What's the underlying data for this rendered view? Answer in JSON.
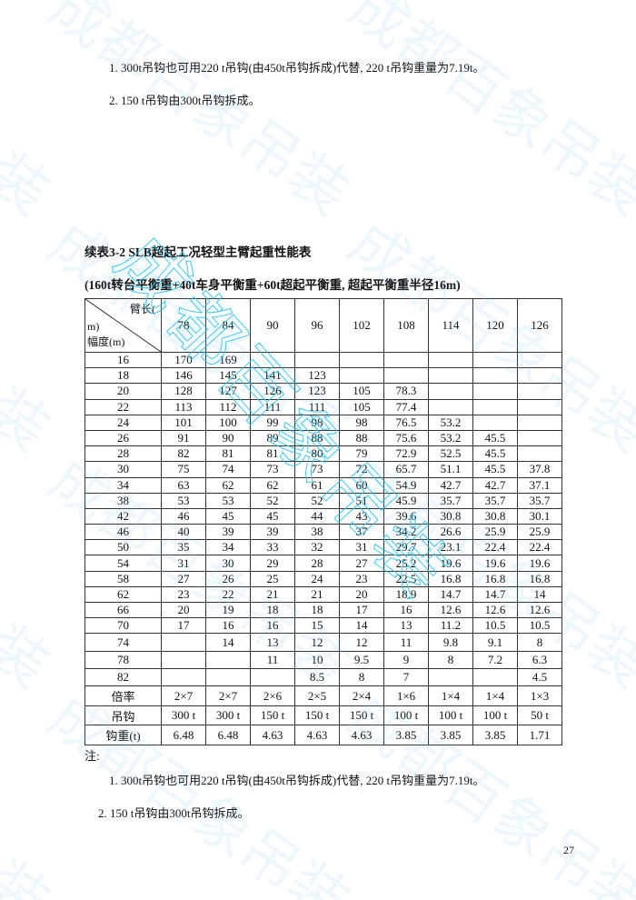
{
  "top_notes": [
    "1. 300t吊钩也可用220 t吊钩(由450t吊钩拆成)代替, 220 t吊钩重量为7.19t。",
    "2. 150 t吊钩由300t吊钩拆成。"
  ],
  "table_title": "续表3-2 SLB超起工况轻型主臂起重性能表",
  "table_subtitle": "(160t转台平衡重+40t车身平衡重+60t超起平衡重, 超起平衡重半径16m)",
  "table": {
    "corner_top": "臂长(",
    "corner_mid": "m)",
    "corner_bottom": "幅度(m)",
    "boom_lengths": [
      "78",
      "84",
      "90",
      "96",
      "102",
      "108",
      "114",
      "120",
      "126"
    ],
    "rows": [
      {
        "radius": "16",
        "values": [
          "170",
          "169",
          "",
          "",
          "",
          "",
          "",
          "",
          ""
        ]
      },
      {
        "radius": "18",
        "values": [
          "146",
          "145",
          "141",
          "123",
          "",
          "",
          "",
          "",
          ""
        ]
      },
      {
        "radius": "20",
        "values": [
          "128",
          "127",
          "126",
          "123",
          "105",
          "78.3",
          "",
          "",
          ""
        ]
      },
      {
        "radius": "22",
        "values": [
          "113",
          "112",
          "111",
          "111",
          "105",
          "77.4",
          "",
          "",
          ""
        ]
      },
      {
        "radius": "24",
        "values": [
          "101",
          "100",
          "99",
          "98",
          "98",
          "76.5",
          "53.2",
          "",
          ""
        ]
      },
      {
        "radius": "26",
        "values": [
          "91",
          "90",
          "89",
          "88",
          "88",
          "75.6",
          "53.2",
          "45.5",
          ""
        ]
      },
      {
        "radius": "28",
        "values": [
          "82",
          "81",
          "81",
          "80",
          "79",
          "72.9",
          "52.5",
          "45.5",
          ""
        ]
      },
      {
        "radius": "30",
        "values": [
          "75",
          "74",
          "73",
          "73",
          "72",
          "65.7",
          "51.1",
          "45.5",
          "37.8"
        ]
      },
      {
        "radius": "34",
        "values": [
          "63",
          "62",
          "62",
          "61",
          "60",
          "54.9",
          "42.7",
          "42.7",
          "37.1"
        ]
      },
      {
        "radius": "38",
        "values": [
          "53",
          "53",
          "52",
          "52",
          "51",
          "45.9",
          "35.7",
          "35.7",
          "35.7"
        ]
      },
      {
        "radius": "42",
        "values": [
          "46",
          "45",
          "45",
          "44",
          "43",
          "39.6",
          "30.8",
          "30.8",
          "30.1"
        ]
      },
      {
        "radius": "46",
        "values": [
          "40",
          "39",
          "39",
          "38",
          "37",
          "34.2",
          "26.6",
          "25.9",
          "25.9"
        ]
      },
      {
        "radius": "50",
        "values": [
          "35",
          "34",
          "33",
          "32",
          "31",
          "29.7",
          "23.1",
          "22.4",
          "22.4"
        ]
      },
      {
        "radius": "54",
        "values": [
          "31",
          "30",
          "29",
          "28",
          "27",
          "25.2",
          "19.6",
          "19.6",
          "19.6"
        ]
      },
      {
        "radius": "58",
        "values": [
          "27",
          "26",
          "25",
          "24",
          "23",
          "22.5",
          "16.8",
          "16.8",
          "16.8"
        ]
      },
      {
        "radius": "62",
        "values": [
          "23",
          "22",
          "21",
          "21",
          "20",
          "18.9",
          "14.7",
          "14.7",
          "14"
        ]
      },
      {
        "radius": "66",
        "values": [
          "20",
          "19",
          "18",
          "18",
          "17",
          "16",
          "12.6",
          "12.6",
          "12.6"
        ]
      },
      {
        "radius": "70",
        "values": [
          "17",
          "16",
          "16",
          "15",
          "14",
          "13",
          "11.2",
          "10.5",
          "10.5"
        ]
      },
      {
        "radius": "74",
        "values": [
          "",
          "14",
          "13",
          "12",
          "12",
          "11",
          "9.8",
          "9.1",
          "8"
        ]
      },
      {
        "radius": "78",
        "values": [
          "",
          "",
          "11",
          "10",
          "9.5",
          "9",
          "8",
          "7.2",
          "6.3"
        ]
      },
      {
        "radius": "82",
        "values": [
          "",
          "",
          "",
          "8.5",
          "8",
          "7",
          "",
          "",
          "4.5"
        ]
      }
    ],
    "footer_rows": [
      {
        "label": "倍率",
        "values": [
          "2×7",
          "2×7",
          "2×6",
          "2×5",
          "2×4",
          "1×6",
          "1×4",
          "1×4",
          "1×3"
        ]
      },
      {
        "label": "吊钩",
        "values": [
          "300 t",
          "300 t",
          "150 t",
          "150 t",
          "150 t",
          "100 t",
          "100 t",
          "100 t",
          "50 t"
        ]
      },
      {
        "label": "钩重(t)",
        "values": [
          "6.48",
          "6.48",
          "4.63",
          "4.63",
          "4.63",
          "3.85",
          "3.85",
          "3.85",
          "1.71"
        ]
      }
    ]
  },
  "notes_label": "注:",
  "bottom_notes": [
    "1. 300t吊钩也可用220 t吊钩(由450t吊钩拆成)代替, 220 t吊钩重量为7.19t。",
    "2. 150 t吊钩由300t吊钩拆成。"
  ],
  "page_number": "27",
  "watermark": "成都百象吊装",
  "colors": {
    "watermark": "#28c3f0"
  }
}
